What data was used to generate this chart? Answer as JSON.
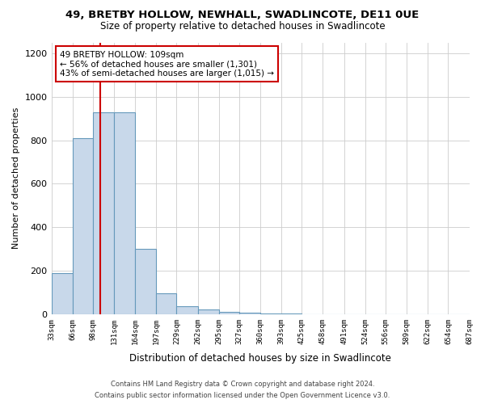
{
  "title_line1": "49, BRETBY HOLLOW, NEWHALL, SWADLINCOTE, DE11 0UE",
  "title_line2": "Size of property relative to detached houses in Swadlincote",
  "xlabel": "Distribution of detached houses by size in Swadlincote",
  "ylabel": "Number of detached properties",
  "bin_edges": [
    33,
    66,
    98,
    131,
    164,
    197,
    229,
    262,
    295,
    327,
    360,
    393,
    425,
    458,
    491,
    524,
    556,
    589,
    622,
    654,
    687
  ],
  "bar_heights": [
    190,
    810,
    930,
    930,
    300,
    95,
    35,
    20,
    10,
    5,
    2,
    2,
    1,
    1,
    1,
    1,
    0,
    0,
    0,
    0
  ],
  "bar_color": "#c8d8ea",
  "bar_edge_color": "#6699bb",
  "property_size": 109,
  "annotation_line1": "49 BRETBY HOLLOW: 109sqm",
  "annotation_line2": "← 56% of detached houses are smaller (1,301)",
  "annotation_line3": "43% of semi-detached houses are larger (1,015) →",
  "annotation_box_color": "#ffffff",
  "annotation_box_edge_color": "#cc0000",
  "red_line_color": "#cc0000",
  "ylim": [
    0,
    1250
  ],
  "yticks": [
    0,
    200,
    400,
    600,
    800,
    1000,
    1200
  ],
  "footer_line1": "Contains HM Land Registry data © Crown copyright and database right 2024.",
  "footer_line2": "Contains public sector information licensed under the Open Government Licence v3.0.",
  "background_color": "#ffffff",
  "grid_color": "#cccccc"
}
